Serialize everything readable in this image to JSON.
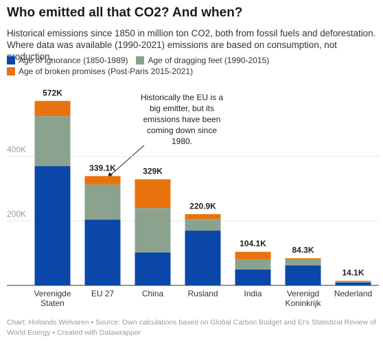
{
  "chart_data": {
    "type": "stacked-bar",
    "title": "Who emitted all that CO2? And when?",
    "subtitle": "Historical emissions since 1850 in million ton CO2, both from fossil fuels and deforestation. Where data was available (1990-2021) emissions are based on consumption, not production.",
    "categories": [
      "Verenigde Staten",
      "EU 27",
      "China",
      "Rusland",
      "India",
      "Verenigd Koninkrijk",
      "Nederland"
    ],
    "series": [
      {
        "name": "Age of ignorance (1850-1989)",
        "color": "#0b47a8",
        "values": [
          370000,
          204000,
          102000,
          170000,
          49000,
          62000,
          8500
        ]
      },
      {
        "name": "Age of dragging feet (1990-2015)",
        "color": "#8ba38e",
        "values": [
          155000,
          109000,
          138000,
          36000,
          32000,
          19000,
          4300
        ]
      },
      {
        "name": "Age of broken promises (Post-Paris 2015-2021)",
        "color": "#e8730c",
        "values": [
          47000,
          26100,
          89000,
          14900,
          23100,
          3300,
          1300
        ]
      }
    ],
    "totals": [
      572000,
      339100,
      329000,
      220900,
      104100,
      84300,
      14100
    ],
    "total_labels": [
      "572K",
      "339.1K",
      "329K",
      "220.9K",
      "104.1K",
      "84.3K",
      "14.1K"
    ],
    "ylim": [
      0,
      600000
    ],
    "yticks": [
      {
        "value": 200000,
        "label": "200K"
      },
      {
        "value": 400000,
        "label": "400K"
      }
    ],
    "grid": true,
    "annotation": [
      "Historically the EU is a",
      "big emitter, but its",
      "emissions have been",
      "coming down since",
      "1980."
    ],
    "footer": "Chart: Hollands Welvaren • Source: Own calculations based on Global Carbon Budget and EI's Statistical Review of World Energy • Created with Datawrapper"
  }
}
